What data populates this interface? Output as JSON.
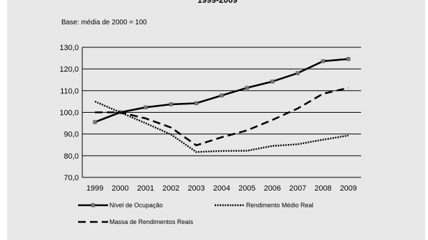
{
  "chart_data": {
    "type": "line",
    "title": "1999-2009",
    "annotation": "Base: média de 2000 = 100",
    "x": [
      "1999",
      "2000",
      "2001",
      "2002",
      "2003",
      "2004",
      "2005",
      "2006",
      "2007",
      "2008",
      "2009"
    ],
    "ylim": [
      70,
      130
    ],
    "yticks": [
      "70,0",
      "80,0",
      "90,0",
      "100,0",
      "110,0",
      "120,0",
      "130,0"
    ],
    "grid": true,
    "legend_position": "bottom",
    "series": [
      {
        "name": "Nível de Ocupação",
        "style": "solid",
        "color": "#000000",
        "values": [
          95.5,
          100.0,
          102.3,
          103.7,
          104.2,
          107.8,
          111.3,
          114.2,
          118.1,
          123.6,
          124.6
        ]
      },
      {
        "name": "Rendimento Médio Real",
        "style": "dotted",
        "color": "#000000",
        "values": [
          105.0,
          100.0,
          95.0,
          89.8,
          81.7,
          82.2,
          82.3,
          84.5,
          85.3,
          87.4,
          89.3
        ]
      },
      {
        "name": "Massa de Rendimentos Reais",
        "style": "dashed",
        "color": "#000000",
        "values": [
          100.0,
          100.0,
          97.2,
          93.0,
          84.8,
          88.5,
          91.7,
          96.5,
          101.8,
          108.6,
          111.3
        ]
      }
    ]
  }
}
